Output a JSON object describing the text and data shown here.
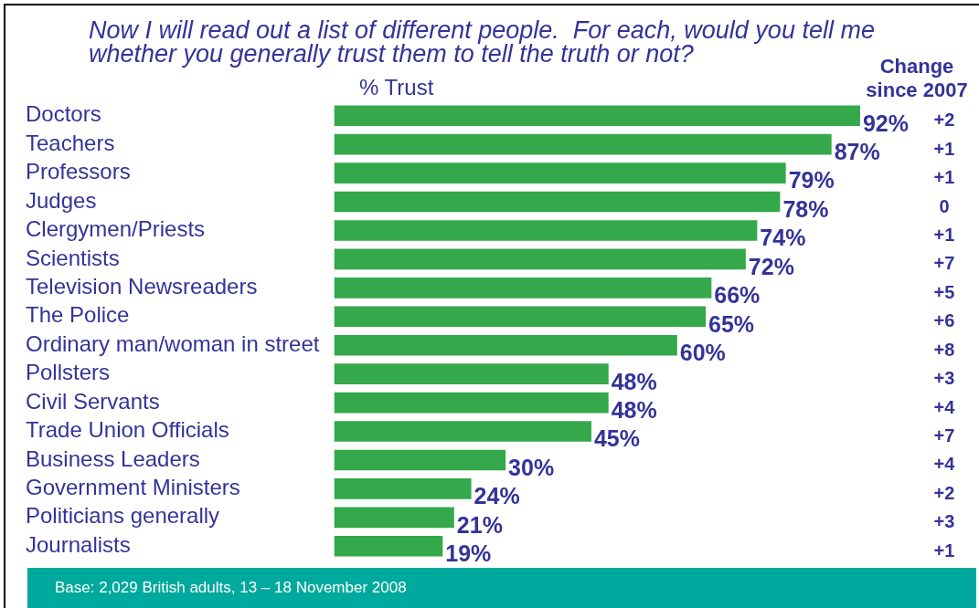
{
  "chart_data": {
    "type": "bar",
    "orientation": "horizontal",
    "title": "Now I will read out a list of different people.  For each, would you tell me whether you generally trust them to tell the truth or not?",
    "xlabel": "% Trust",
    "categories": [
      "Doctors",
      "Teachers",
      "Professors",
      "Judges",
      "Clergymen/Priests",
      "Scientists",
      "Television Newsreaders",
      "The Police",
      "Ordinary man/woman in street",
      "Pollsters",
      "Civil Servants",
      "Trade Union Officials",
      "Business Leaders",
      "Government Ministers",
      "Politicians generally",
      "Journalists"
    ],
    "values": [
      92,
      87,
      79,
      78,
      74,
      72,
      66,
      65,
      60,
      48,
      48,
      45,
      30,
      24,
      21,
      19
    ],
    "value_labels": [
      "92%",
      "87%",
      "79%",
      "78%",
      "74%",
      "72%",
      "66%",
      "65%",
      "60%",
      "48%",
      "48%",
      "45%",
      "30%",
      "24%",
      "21%",
      "19%"
    ],
    "color": "#34a84a",
    "tick_labels": "y",
    "annotations": [
      "Change since 2007",
      "Base: 2,029 British adults, 13 – 18 November 2008",
      "+2",
      "+1",
      "+1",
      "0",
      "+1",
      "+7",
      "+5",
      "+6",
      "+8",
      "+3",
      "+4",
      "+7",
      "+4",
      "+2",
      "+3",
      "+1"
    ]
  }
}
